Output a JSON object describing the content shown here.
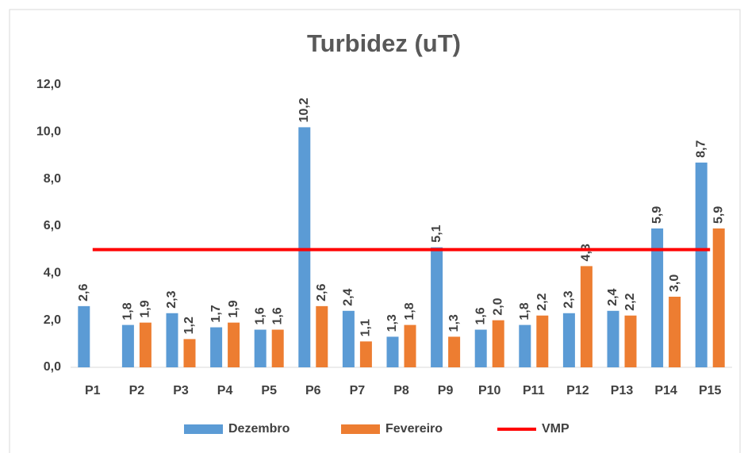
{
  "chart_data": {
    "type": "bar",
    "title": "Turbidez (uT)",
    "categories": [
      "P1",
      "P2",
      "P3",
      "P4",
      "P5",
      "P6",
      "P7",
      "P8",
      "P9",
      "P10",
      "P11",
      "P12",
      "P13",
      "P14",
      "P15"
    ],
    "series": [
      {
        "name": "Dezembro",
        "color": "#5b9bd5",
        "values": [
          2.6,
          1.8,
          2.3,
          1.7,
          1.6,
          10.2,
          2.4,
          1.3,
          5.1,
          1.6,
          1.8,
          2.3,
          2.4,
          5.9,
          8.7
        ],
        "value_labels": [
          "2,6",
          "1,8",
          "2,3",
          "1,7",
          "1,6",
          "10,2",
          "2,4",
          "1,3",
          "5,1",
          "1,6",
          "1,8",
          "2,3",
          "2,4",
          "5,9",
          "8,7"
        ]
      },
      {
        "name": "Fevereiro",
        "color": "#ed7d31",
        "values": [
          null,
          1.9,
          1.2,
          1.9,
          1.6,
          2.6,
          1.1,
          1.8,
          1.3,
          2.0,
          2.2,
          4.3,
          2.2,
          3.0,
          5.9
        ],
        "value_labels": [
          null,
          "1,9",
          "1,2",
          "1,9",
          "1,6",
          "2,6",
          "1,1",
          "1,8",
          "1,3",
          "2,0",
          "2,2",
          "4,3",
          "2,2",
          "3,0",
          "5,9"
        ]
      },
      {
        "name": "VMP",
        "type": "line",
        "color": "#ff0000",
        "values": [
          5,
          5,
          5,
          5,
          5,
          5,
          5,
          5,
          5,
          5,
          5,
          5,
          5,
          5,
          5
        ]
      }
    ],
    "ylim": [
      0,
      12
    ],
    "yticks": [
      {
        "value": 0,
        "label": "0,0"
      },
      {
        "value": 2,
        "label": "2,0"
      },
      {
        "value": 4,
        "label": "4,0"
      },
      {
        "value": 6,
        "label": "6,0"
      },
      {
        "value": 8,
        "label": "8,0"
      },
      {
        "value": 10,
        "label": "10,0"
      },
      {
        "value": 12,
        "label": "12,0"
      }
    ],
    "grid": false,
    "legend": "bottom"
  }
}
